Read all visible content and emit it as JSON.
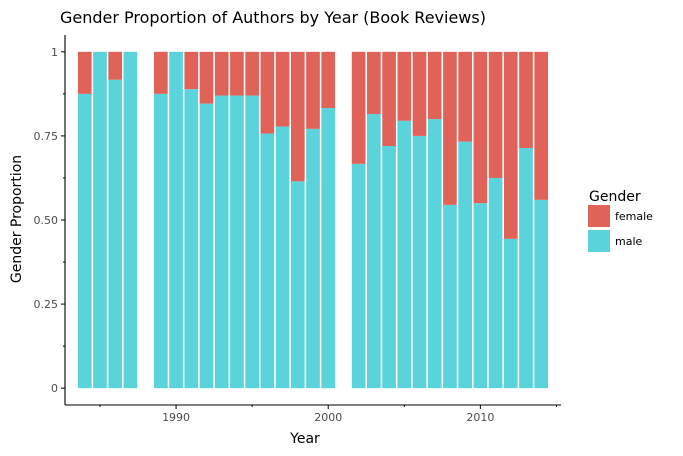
{
  "chart_data": {
    "type": "bar",
    "stacked": true,
    "title": "Gender Proportion of Authors by Year (Book Reviews)",
    "xlabel": "Year",
    "ylabel": "Gender Proportion",
    "xlim": [
      1982.7,
      2015.3
    ],
    "ylim": [
      -0.05,
      1.05
    ],
    "x_ticks": [
      1990,
      2000,
      2010
    ],
    "x_tick_labels": [
      "1990",
      "2000",
      "2010"
    ],
    "y_ticks": [
      0,
      0.25,
      0.5,
      0.75,
      1
    ],
    "y_tick_labels": [
      "0",
      "0.25",
      "0.50",
      "0.75",
      "1"
    ],
    "grid": false,
    "legend": {
      "title": "Gender",
      "position": "right",
      "entries": [
        {
          "label": "female",
          "color": "#e0635a"
        },
        {
          "label": "male",
          "color": "#5bd3db"
        }
      ]
    },
    "years": [
      1984,
      1985,
      1986,
      1987,
      1989,
      1990,
      1991,
      1992,
      1993,
      1994,
      1995,
      1996,
      1997,
      1998,
      1999,
      2000,
      2002,
      2003,
      2004,
      2005,
      2006,
      2007,
      2008,
      2009,
      2010,
      2011,
      2012,
      2013,
      2014
    ],
    "series": [
      {
        "name": "male",
        "color": "#5bd3db",
        "values": [
          0.875,
          1.0,
          0.917,
          1.0,
          0.875,
          1.0,
          0.889,
          0.846,
          0.87,
          0.87,
          0.87,
          0.757,
          0.778,
          0.615,
          0.771,
          0.833,
          0.667,
          0.815,
          0.72,
          0.795,
          0.75,
          0.8,
          0.545,
          0.733,
          0.55,
          0.625,
          0.444,
          0.714,
          0.56
        ]
      },
      {
        "name": "female",
        "color": "#e0635a",
        "values": [
          0.125,
          0.0,
          0.083,
          0.0,
          0.125,
          0.0,
          0.111,
          0.154,
          0.13,
          0.13,
          0.13,
          0.243,
          0.222,
          0.385,
          0.229,
          0.167,
          0.333,
          0.185,
          0.28,
          0.205,
          0.25,
          0.2,
          0.455,
          0.267,
          0.45,
          0.375,
          0.556,
          0.286,
          0.44
        ]
      }
    ]
  }
}
